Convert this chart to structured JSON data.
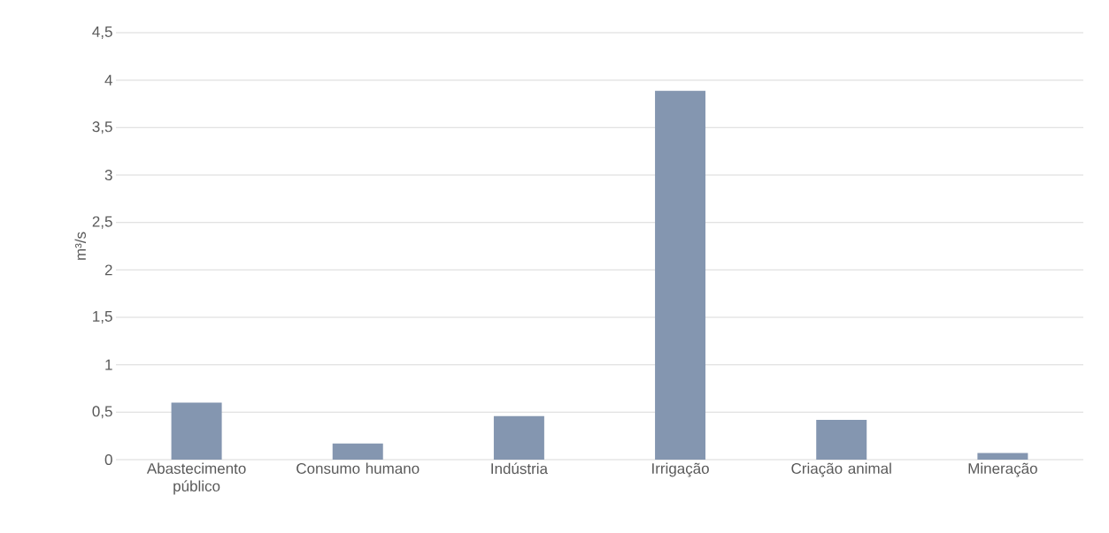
{
  "chart_data": {
    "type": "bar",
    "ylabel": "m³/s",
    "categories": [
      "Abastecimento público",
      "Consumo humano",
      "Indústria",
      "Irrigação",
      "Criação animal",
      "Mineração"
    ],
    "values": [
      0.6,
      0.17,
      0.46,
      3.89,
      0.42,
      0.07
    ],
    "color": "#8496b0",
    "ylim": [
      0,
      4.5
    ],
    "yticks": [
      0,
      {
        "value": 0.5,
        "label": "0,5"
      },
      1,
      {
        "value": 1.5,
        "label": "1,5"
      },
      2,
      {
        "value": 2.5,
        "label": "2,5"
      },
      3,
      {
        "value": 3.5,
        "label": "3,5"
      },
      4,
      {
        "value": 4.5,
        "label": "4,5"
      }
    ],
    "grid": "y"
  }
}
